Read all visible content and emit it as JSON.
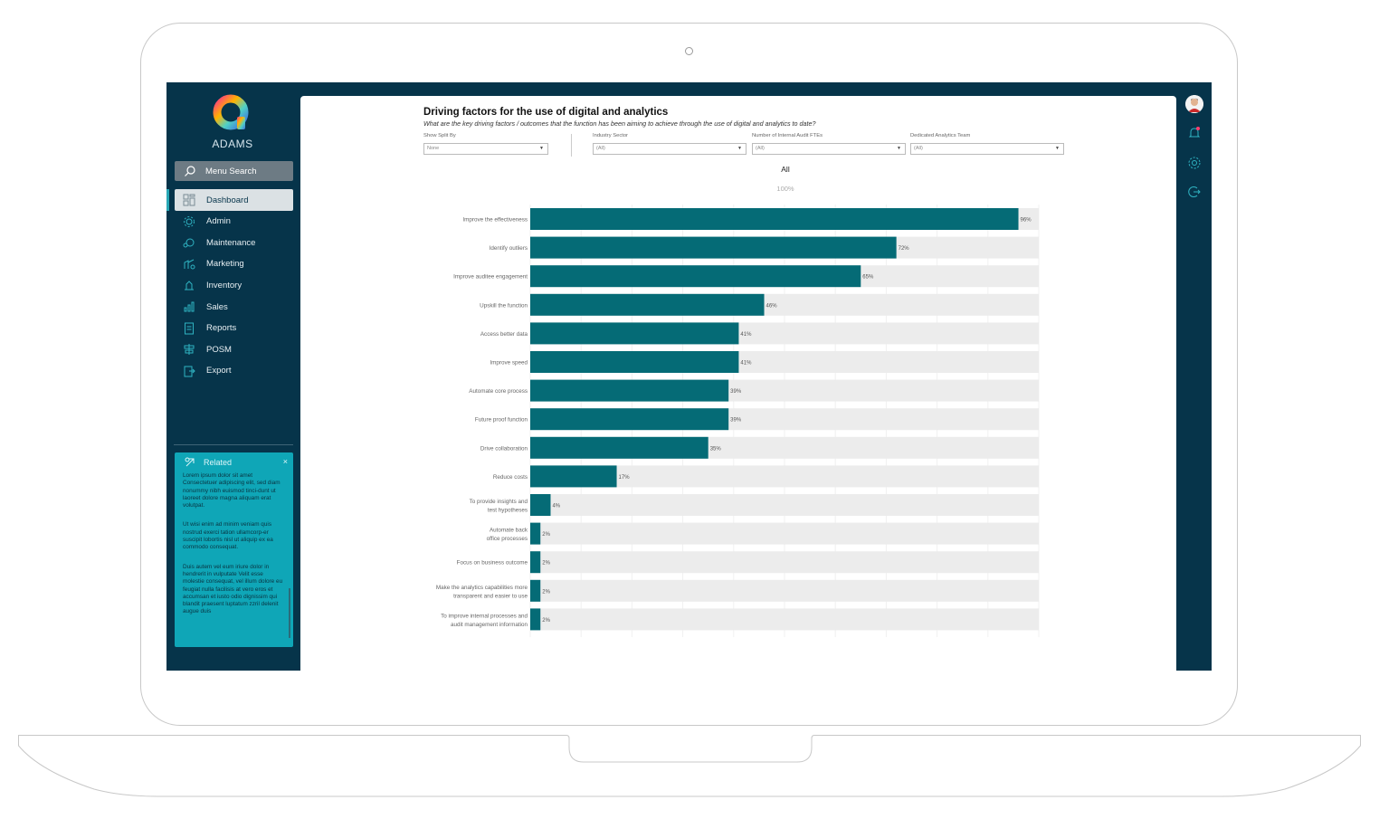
{
  "brand": {
    "name": "ADAMS"
  },
  "search": {
    "label": "Menu Search"
  },
  "menu": {
    "items": [
      {
        "label": "Dashboard",
        "icon": "dashboard-icon",
        "active": true
      },
      {
        "label": "Admin",
        "icon": "admin-gear-icon"
      },
      {
        "label": "Maintenance",
        "icon": "maintenance-icon"
      },
      {
        "label": "Marketing",
        "icon": "marketing-icon"
      },
      {
        "label": "Inventory",
        "icon": "inventory-icon"
      },
      {
        "label": "Sales",
        "icon": "sales-chart-icon"
      },
      {
        "label": "Reports",
        "icon": "reports-icon"
      },
      {
        "label": "POSM",
        "icon": "posm-icon"
      },
      {
        "label": "Export",
        "icon": "export-icon"
      }
    ]
  },
  "related": {
    "title": "Related",
    "close": "×",
    "paragraphs": [
      "Lorem ipsum dolor sit amet Consectetuer adipiscing elit, sed diam nonummy nibh euismod tinci-dunt ut laoreet dolore magna aliquam erat volutpat.",
      "Ut wisi enim ad minim veniam quis nostrud exerci tation ullamcorp-er suscipit lobortis nisl ut aliquip ex ea commodo consequat.",
      "Duis autem vel eum iriure dolor in hendrerit in vulputate Velit esse molestie consequat, vel illum dolore eu feugiat nulla facilisis at vero eros et accumsan et iusto odio dignissim qui blandit praesent luptatum zzril delenit augue duis"
    ]
  },
  "dashboard": {
    "title": "Driving factors for the use of digital and analytics",
    "subtitle": "What are the key driving factors / outcomes that the function has been aiming to achieve through the use of digital and analytics to date?",
    "filters": [
      {
        "label": "Show Split By",
        "value": "None"
      },
      {
        "label": "Industry Sector",
        "value": "(All)"
      },
      {
        "label": "Number of Internal Audit FTEs",
        "value": "(All)"
      },
      {
        "label": "Dedicated Analytics Team",
        "value": "(All)"
      }
    ],
    "chart_header": "All",
    "chart_total": "100%"
  },
  "colors": {
    "bar": "#056b76",
    "track": "#ececec",
    "sidebar": "#06344a",
    "related": "#0fa6b7"
  },
  "chart_data": {
    "type": "bar",
    "orientation": "horizontal",
    "title": "All",
    "categories": [
      "Improve the effectiveness",
      "Identify outliers",
      "Improve auditee engagement",
      "Upskill the function",
      "Access better data",
      "Improve speed",
      "Automate core process",
      "Future proof function",
      "Drive collaboration",
      "Reduce costs",
      "To provide insights and test hypotheses",
      "Automate back office processes",
      "Focus on business outcome",
      "Make the analytics capabilities more transparent and easier to use",
      "To improve internal processes and audit management information"
    ],
    "values": [
      96,
      72,
      65,
      46,
      41,
      41,
      39,
      39,
      35,
      17,
      4,
      2,
      2,
      2,
      2
    ],
    "value_labels": [
      "96%",
      "72%",
      "65%",
      "46%",
      "41%",
      "41%",
      "39%",
      "39%",
      "35%",
      "17%",
      "4%",
      "2%",
      "2%",
      "2%",
      "2%"
    ],
    "xlim": [
      0,
      100
    ],
    "grid": true
  }
}
